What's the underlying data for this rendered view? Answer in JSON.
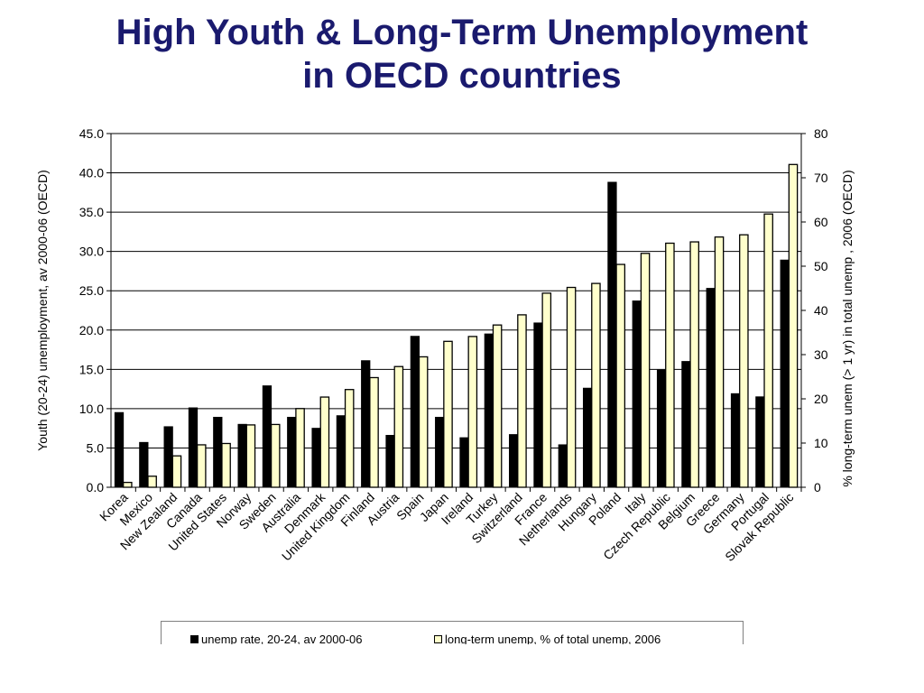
{
  "title_line1": "High Youth & Long-Term Unemployment",
  "title_line2": "in OECD countries",
  "colors": {
    "title": "#1a1a6e",
    "series1_fill": "#000000",
    "series2_fill": "#ffffcc",
    "grid": "#000000"
  },
  "chart_data": {
    "type": "bar",
    "ylabel": "Youth (20-24) unemployment, av 2000-06 (OECD)",
    "y2label": "% long-term unem (> 1 yr) in total unemp , 2006 (OECD)",
    "ylim": [
      0,
      45
    ],
    "y2lim": [
      0,
      80
    ],
    "yticks": [
      "0.0",
      "5.0",
      "10.0",
      "15.0",
      "20.0",
      "25.0",
      "30.0",
      "35.0",
      "40.0",
      "45.0"
    ],
    "y2ticks": [
      "0",
      "10",
      "20",
      "30",
      "40",
      "50",
      "60",
      "70",
      "80"
    ],
    "grid": true,
    "categories": [
      "Korea",
      "Mexico",
      "New Zealand",
      "Canada",
      "United States",
      "Norway",
      "Sweden",
      "Australia",
      "Denmark",
      "United Kingdom",
      "Finland",
      "Austria",
      "Spain",
      "Japan",
      "Ireland",
      "Turkey",
      "Switzerland",
      "France",
      "Netherlands",
      "Hungary",
      "Poland",
      "Italy",
      "Czech Republic",
      "Belgium",
      "Greece",
      "Germany",
      "Portugal",
      "Slovak Republic"
    ],
    "series": [
      {
        "name": "unemp rate, 20-24, av 2000-06",
        "axis": "left",
        "values": [
          9.5,
          5.7,
          7.7,
          10.1,
          8.9,
          8.0,
          12.9,
          8.9,
          7.5,
          9.1,
          16.1,
          6.6,
          19.2,
          8.9,
          6.3,
          19.5,
          6.7,
          20.9,
          5.4,
          12.6,
          38.8,
          23.7,
          14.9,
          16.0,
          25.3,
          11.9,
          11.5,
          28.9
        ]
      },
      {
        "name": "long-term unemp, % of total unemp, 2006",
        "axis": "right",
        "values": [
          1.1,
          2.5,
          7.1,
          9.6,
          9.9,
          14.1,
          14.2,
          17.8,
          20.4,
          22.1,
          24.8,
          27.3,
          29.5,
          33.0,
          34.1,
          36.7,
          39.0,
          43.9,
          45.2,
          46.1,
          50.4,
          52.9,
          55.2,
          55.5,
          56.6,
          57.1,
          61.8,
          73.0
        ]
      }
    ],
    "legend_position": "bottom"
  }
}
